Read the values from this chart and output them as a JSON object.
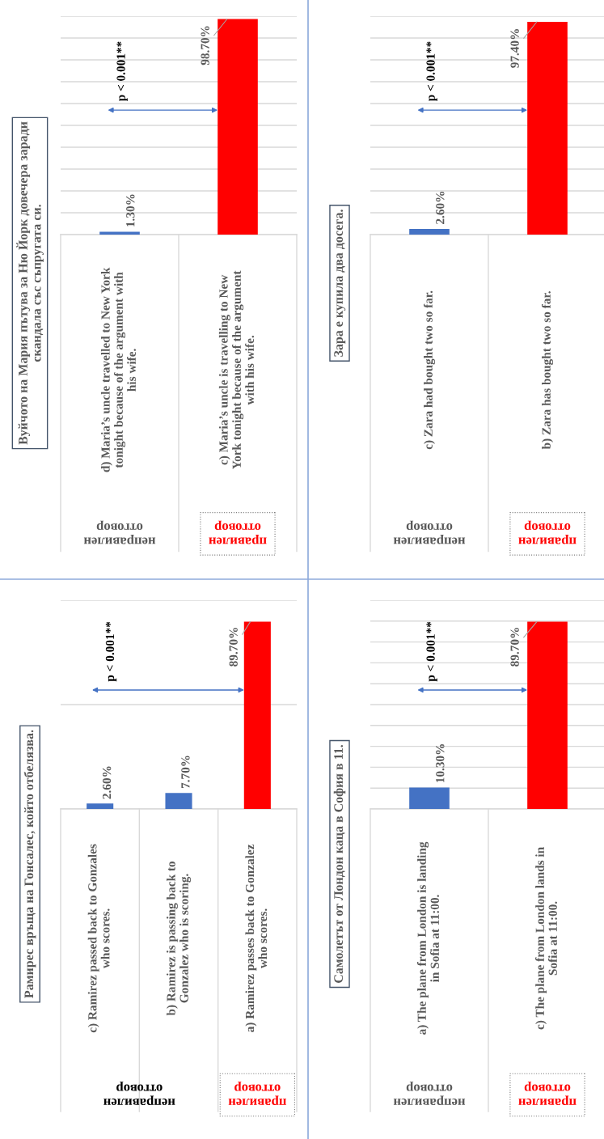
{
  "chart_data": [
    {
      "type": "bar",
      "title": "Вуйчото на Мария пътува за Ню Йорк довечера заради\nскандала със съпругата си.",
      "categories": [
        "d) Maria’s uncle travelled to New York\ntonight because of the argument with\nhis wife.",
        "c) Maria’s uncle is travelling to New\nYork tonight because of the argument\nwith his wife."
      ],
      "values": [
        1.3,
        98.7
      ],
      "colors": [
        "#4472c4",
        "#ff0000"
      ],
      "value_labels": [
        "1.30%",
        "98.70%"
      ],
      "ylim": [
        0,
        100
      ],
      "yticks": [
        {
          "value": 0,
          "label": null
        },
        {
          "value": 10,
          "label": null
        },
        {
          "value": 20,
          "label": null
        },
        {
          "value": 30,
          "label": null
        },
        {
          "value": 40,
          "label": null
        },
        {
          "value": 50,
          "label": null
        },
        {
          "value": 60,
          "label": null
        },
        {
          "value": 70,
          "label": null
        },
        {
          "value": 80,
          "label": null
        },
        {
          "value": 90,
          "label": null
        },
        {
          "value": 100,
          "label": null
        }
      ],
      "grid": "y",
      "annotations": [
        "неправилен\nотговор",
        "правилен\nотговор",
        "p < 0.001**"
      ]
    },
    {
      "type": "bar",
      "title": "Зара е купила два досега.",
      "categories": [
        "c) Zara had bought two so far.",
        "b) Zara has bought two so far."
      ],
      "values": [
        2.6,
        97.4
      ],
      "colors": [
        "#4472c4",
        "#ff0000"
      ],
      "value_labels": [
        "2.60%",
        "97.40%"
      ],
      "ylim": [
        0,
        100
      ],
      "yticks": [
        {
          "value": 0,
          "label": null
        },
        {
          "value": 10,
          "label": null
        },
        {
          "value": 20,
          "label": null
        },
        {
          "value": 30,
          "label": null
        },
        {
          "value": 40,
          "label": null
        },
        {
          "value": 50,
          "label": null
        },
        {
          "value": 60,
          "label": null
        },
        {
          "value": 70,
          "label": null
        },
        {
          "value": 80,
          "label": null
        },
        {
          "value": 90,
          "label": null
        },
        {
          "value": 100,
          "label": null
        }
      ],
      "grid": "y",
      "annotations": [
        "неправилен\nотговор",
        "правилен\nотговор",
        "p < 0.001**"
      ]
    },
    {
      "type": "bar",
      "title": "Рамирес връща на Гонсалес, който отбелязва.",
      "categories": [
        "c) Ramirez passed back to Gonzales\nwho scores.",
        "b) Ramirez is passing back to\nGonzalez who is scoring.",
        "a) Ramirez passes back to Gonzalez\nwho scores."
      ],
      "values": [
        2.6,
        7.7,
        89.7
      ],
      "colors": [
        "#4472c4",
        "#4472c4",
        "#ff0000"
      ],
      "value_labels": [
        "2.60%",
        "7.70%",
        "89.70%"
      ],
      "ylim": [
        0,
        100
      ],
      "yticks": [
        {
          "value": 0,
          "label": null
        },
        {
          "value": 50,
          "label": null
        },
        {
          "value": 100,
          "label": null
        }
      ],
      "grid": "y",
      "annotations": [
        "неправилен\nотговор",
        "правилен\nотговор",
        "p < 0.001**"
      ]
    },
    {
      "type": "bar",
      "title": "Самолетът от Лондон каца в София в 11.",
      "categories": [
        "a) The plane from London is landing\nin Sofia at 11:00.",
        "c) The plane from London lands in\nSofia at 11:00."
      ],
      "values": [
        10.3,
        89.7
      ],
      "colors": [
        "#4472c4",
        "#ff0000"
      ],
      "value_labels": [
        "10.30%",
        "89.70%"
      ],
      "ylim": [
        0,
        100
      ],
      "yticks": [
        {
          "value": 0,
          "label": null
        },
        {
          "value": 10,
          "label": null
        },
        {
          "value": 20,
          "label": null
        },
        {
          "value": 30,
          "label": null
        },
        {
          "value": 40,
          "label": null
        },
        {
          "value": 50,
          "label": null
        },
        {
          "value": 60,
          "label": null
        },
        {
          "value": 70,
          "label": null
        },
        {
          "value": 80,
          "label": null
        },
        {
          "value": 90,
          "label": null
        },
        {
          "value": 100,
          "label": null
        }
      ],
      "grid": "y",
      "annotations": [
        "неправилен\nотговор",
        "правилен\nотговор",
        "p < 0.001**"
      ]
    }
  ]
}
